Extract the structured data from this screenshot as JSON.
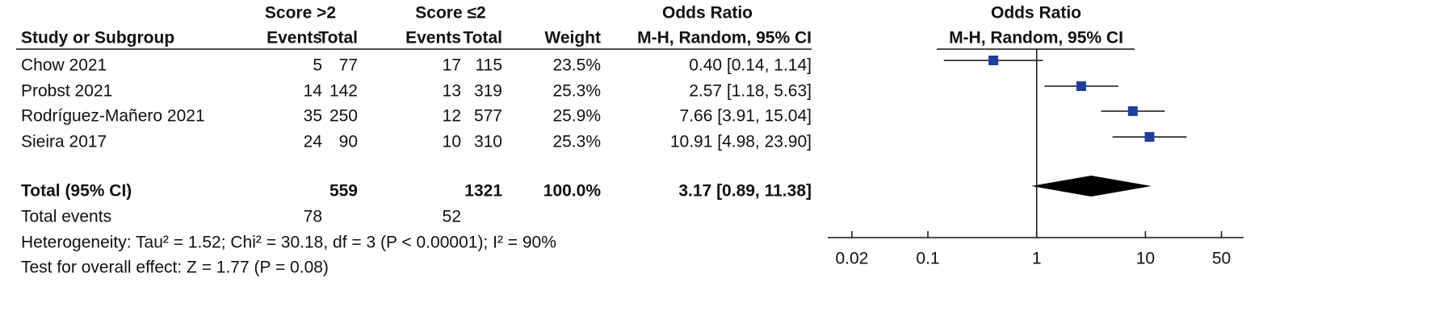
{
  "chart_data": {
    "type": "forest",
    "headers": {
      "group1": "Score >2",
      "group2": "Score ≤2",
      "study": "Study or Subgroup",
      "events1": "Events",
      "total1": "Total",
      "events2": "Events",
      "total2": "Total",
      "weight": "Weight",
      "or_title": "Odds Ratio",
      "or_method": "M-H, Random, 95% CI",
      "plot_title": "Odds Ratio",
      "plot_method": "M-H, Random, 95% CI"
    },
    "studies": [
      {
        "name": "Chow 2021",
        "events1": 5,
        "total1": 77,
        "events2": 17,
        "total2": 115,
        "weight": "23.5%",
        "or": 0.4,
        "ci": [
          0.14,
          1.14
        ],
        "label": "0.40 [0.14, 1.14]"
      },
      {
        "name": "Probst 2021",
        "events1": 14,
        "total1": 142,
        "events2": 13,
        "total2": 319,
        "weight": "25.3%",
        "or": 2.57,
        "ci": [
          1.18,
          5.63
        ],
        "label": "2.57 [1.18, 5.63]"
      },
      {
        "name": "Rodríguez-Mañero 2021",
        "events1": 35,
        "total1": 250,
        "events2": 12,
        "total2": 577,
        "weight": "25.9%",
        "or": 7.66,
        "ci": [
          3.91,
          15.04
        ],
        "label": "7.66 [3.91, 15.04]"
      },
      {
        "name": "Sieira 2017",
        "events1": 24,
        "total1": 90,
        "events2": 10,
        "total2": 310,
        "weight": "25.3%",
        "or": 10.91,
        "ci": [
          4.98,
          23.9
        ],
        "label": "10.91 [4.98, 23.90]"
      }
    ],
    "total": {
      "name": "Total (95% CI)",
      "total1": 559,
      "total2": 1321,
      "weight": "100.0%",
      "or": 3.17,
      "ci": [
        0.89,
        11.38
      ],
      "label": "3.17 [0.89, 11.38]"
    },
    "total_events": {
      "name": "Total events",
      "events1": 78,
      "events2": 52
    },
    "heterogeneity": "Heterogeneity: Tau² = 1.52; Chi² = 30.18, df = 3 (P < 0.00001); I² = 90%",
    "overall_effect": "Test for overall effect: Z = 1.77 (P = 0.08)",
    "xscale": "log",
    "xlim": [
      0.012,
      80
    ],
    "xticks": [
      0.02,
      0.1,
      1,
      10,
      50
    ],
    "color": "#1f3f9a"
  }
}
